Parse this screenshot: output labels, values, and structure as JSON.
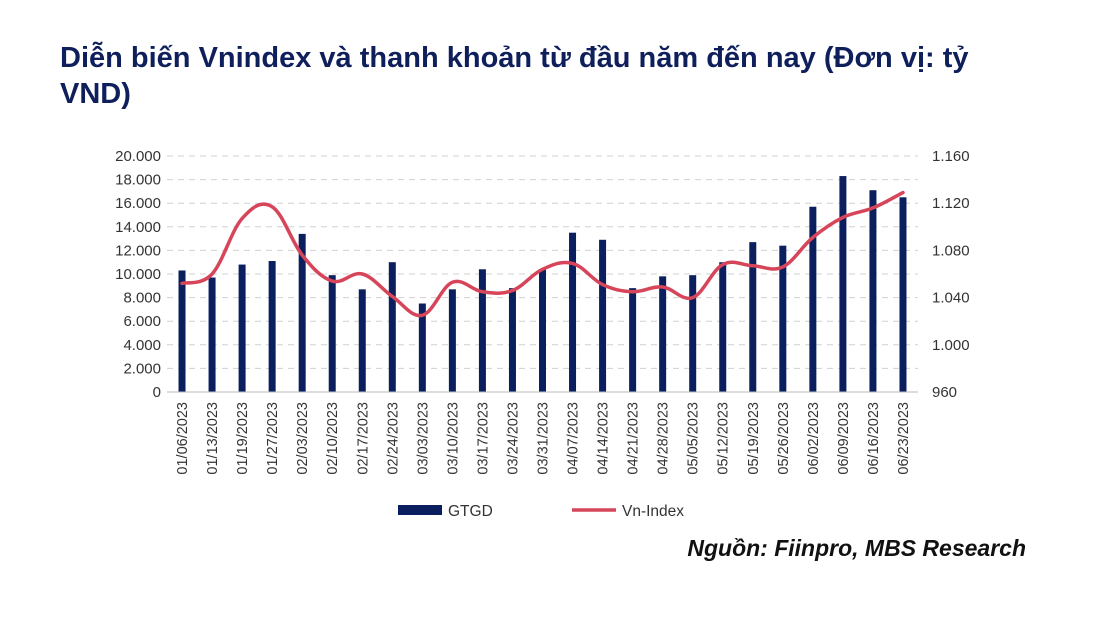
{
  "title": "Diễn biến Vnindex và thanh khoản từ đầu năm đến nay (Đơn vị: tỷ VND)",
  "source": "Nguồn: Fiinpro, MBS Research",
  "colors": {
    "bar": "#0b1f5e",
    "line": "#d6455a",
    "grid": "#d0d0d0",
    "title": "#0f1f5c"
  },
  "chart_data": {
    "type": "bar+line",
    "title": "Diễn biến Vnindex và thanh khoản từ đầu năm đến nay (Đơn vị: tỷ VND)",
    "categories": [
      "01/06/2023",
      "01/13/2023",
      "01/19/2023",
      "01/27/2023",
      "02/03/2023",
      "02/10/2023",
      "02/17/2023",
      "02/24/2023",
      "03/03/2023",
      "03/10/2023",
      "03/17/2023",
      "03/24/2023",
      "03/31/2023",
      "04/07/2023",
      "04/14/2023",
      "04/21/2023",
      "04/28/2023",
      "05/05/2023",
      "05/12/2023",
      "05/19/2023",
      "05/26/2023",
      "06/02/2023",
      "06/09/2023",
      "06/16/2023",
      "06/23/2023"
    ],
    "series": [
      {
        "name": "GTGD",
        "type": "bar",
        "axis": "left",
        "values": [
          10300,
          9700,
          10800,
          11100,
          13400,
          9900,
          8700,
          11000,
          7500,
          8700,
          10400,
          8800,
          10400,
          13500,
          12900,
          8800,
          9800,
          9900,
          11000,
          12700,
          12400,
          15700,
          18300,
          17100,
          16500
        ]
      },
      {
        "name": "Vn-Index",
        "type": "line",
        "axis": "right",
        "values": [
          1052,
          1060,
          1107,
          1117,
          1076,
          1054,
          1060,
          1041,
          1025,
          1053,
          1045,
          1046,
          1064,
          1069,
          1051,
          1045,
          1049,
          1040,
          1068,
          1067,
          1066,
          1091,
          1108,
          1116,
          1129
        ]
      }
    ],
    "y_left": {
      "min": 0,
      "max": 20000,
      "ticks": [
        "0",
        "2.000",
        "4.000",
        "6.000",
        "8.000",
        "10.000",
        "12.000",
        "14.000",
        "16.000",
        "18.000",
        "20.000"
      ]
    },
    "y_right": {
      "min": 960,
      "max": 1160,
      "ticks": [
        "960",
        "1.000",
        "1.040",
        "1.080",
        "1.120",
        "1.160"
      ]
    },
    "legend": {
      "position": "bottom",
      "entries": [
        "GTGD",
        "Vn-Index"
      ]
    },
    "grid": true
  }
}
